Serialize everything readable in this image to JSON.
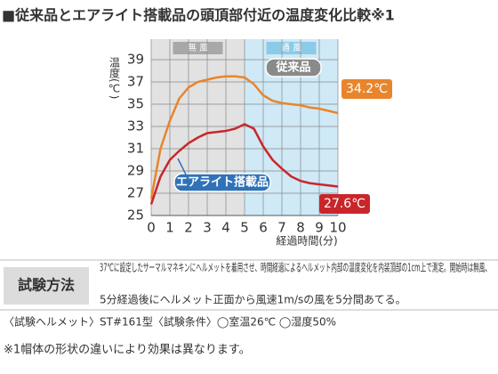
{
  "chart_data": {
    "type": "line",
    "title": "■従来品とエアライト搭載品の頭頂部付近の温度変化比較※1",
    "y_label": "温度(℃)",
    "x_label": "経過時間(分)",
    "x": [
      0,
      0.5,
      1,
      1.5,
      2,
      2.5,
      3,
      3.5,
      4,
      4.5,
      5,
      5.5,
      6,
      6.5,
      7,
      7.5,
      8,
      8.5,
      9,
      9.5,
      10
    ],
    "xlim": [
      0,
      10
    ],
    "xticks": [
      0,
      1,
      2,
      3,
      4,
      5,
      6,
      7,
      8,
      9,
      10
    ],
    "ylim": [
      25,
      39
    ],
    "yticks": [
      25,
      27,
      29,
      31,
      33,
      35,
      37,
      39
    ],
    "grid": true,
    "regions": [
      {
        "label": "無 風",
        "from": 0,
        "to": 5,
        "color": "#e2e2e2",
        "label_color": "#a8a8a8"
      },
      {
        "label": "通 風",
        "from": 5,
        "to": 10,
        "color": "#cfe9f6",
        "label_color": "#8ccbe8"
      }
    ],
    "series": [
      {
        "name": "従来品",
        "color": "#e8852c",
        "name_color": "#8a8a8a",
        "values": [
          26.5,
          31,
          33.5,
          35.5,
          36.5,
          37,
          37.2,
          37.4,
          37.5,
          37.5,
          37.4,
          36.8,
          35.8,
          35.3,
          35.1,
          35.0,
          34.9,
          34.7,
          34.6,
          34.4,
          34.2
        ],
        "value_labels": [
          null,
          null,
          null,
          null,
          null,
          null,
          null,
          null,
          null,
          null,
          null,
          null,
          null,
          null,
          null,
          null,
          null,
          null,
          null,
          null,
          "34.2℃"
        ]
      },
      {
        "name": "エアライト搭載品",
        "color": "#c9262b",
        "name_color": "#2f72b8",
        "values": [
          26,
          28.5,
          30,
          30.8,
          31.5,
          32,
          32.4,
          32.5,
          32.6,
          32.8,
          33.2,
          32.8,
          31.2,
          30.0,
          29.2,
          28.5,
          28.1,
          27.9,
          27.8,
          27.7,
          27.6
        ],
        "value_labels": [
          null,
          null,
          null,
          null,
          null,
          null,
          null,
          null,
          null,
          null,
          null,
          null,
          null,
          null,
          null,
          null,
          null,
          null,
          null,
          null,
          "27.6℃"
        ]
      }
    ]
  },
  "method": {
    "heading": "試験方法",
    "lines": [
      "37℃に設定したサーマルマネキンにヘルメットを着用させ、時間経過によるヘルメット内部の温度変化を内装頂部の1cm上で測定。開始時は無風、",
      "5分経過後にヘルメット正面から風速1m/sの風を5分間あてる。"
    ],
    "condition": "〈試験ヘルメット〉ST#161型〈試験条件〉◯室温26℃ ◯湿度50%",
    "footnote": "※1帽体の形状の違いにより効果は異なります。"
  }
}
